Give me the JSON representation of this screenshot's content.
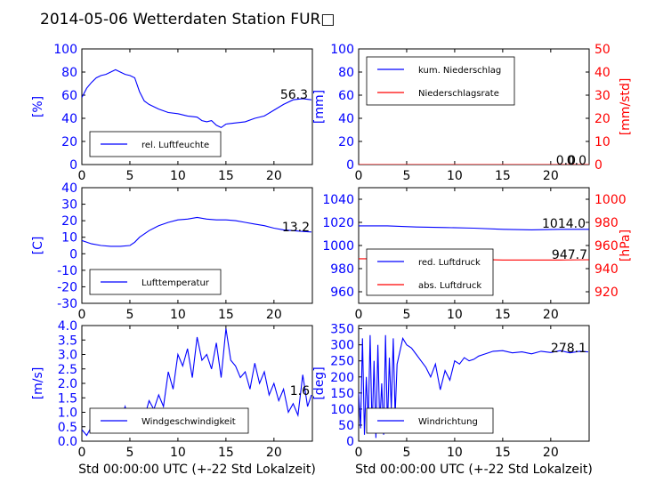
{
  "title": "2014-05-06 Wetterdaten Station FUR□",
  "chart_data": [
    {
      "type": "line",
      "xlim": [
        0,
        24
      ],
      "xticks": [
        0,
        5,
        10,
        15,
        20
      ],
      "ylim": [
        0,
        100
      ],
      "yticks": [
        0,
        20,
        40,
        60,
        80,
        100
      ],
      "ylabel": "[%]",
      "xlabel": "",
      "last_value": "56.3",
      "legend_position": "lower-left",
      "grid": false,
      "series": [
        {
          "name": "rel. Luftfeuchte",
          "color": "#0000ff",
          "axis": "left",
          "x": [
            0,
            0.5,
            1,
            1.5,
            2,
            2.5,
            3,
            3.5,
            4,
            4.5,
            5,
            5.5,
            6,
            6.5,
            7,
            7.5,
            8,
            9,
            10,
            11,
            12,
            12.5,
            13,
            13.5,
            14,
            14.5,
            15,
            16,
            17,
            18,
            19,
            20,
            21,
            22,
            23,
            23.9
          ],
          "y": [
            58,
            66,
            71,
            75,
            77,
            78,
            80,
            82,
            80,
            78,
            77,
            75,
            63,
            55,
            52,
            50,
            48,
            45,
            44,
            42,
            41,
            38,
            37,
            38,
            34,
            32,
            35,
            36,
            37,
            40,
            42,
            47,
            52,
            56,
            57,
            56
          ]
        }
      ]
    },
    {
      "type": "line",
      "xlim": [
        0,
        24
      ],
      "xticks": [
        0,
        5,
        10,
        15,
        20
      ],
      "ylim": [
        0,
        100
      ],
      "yticks": [
        0,
        20,
        40,
        60,
        80,
        100
      ],
      "ylabel": "[mm]",
      "y2lim": [
        0,
        50
      ],
      "y2ticks": [
        0,
        10,
        20,
        30,
        40,
        50
      ],
      "y2label": "[mm/std]",
      "xlabel": "",
      "last_value": "0.0",
      "last_value2": "0.0",
      "legend_position": "upper-left",
      "grid": false,
      "series": [
        {
          "name": "kum. Niederschlag",
          "color": "#0000ff",
          "axis": "left",
          "x": [
            0,
            24
          ],
          "y": [
            0,
            0
          ]
        },
        {
          "name": "Niederschlagsrate",
          "color": "#ff0000",
          "axis": "right",
          "x": [
            0,
            24
          ],
          "y": [
            0,
            0
          ]
        }
      ]
    },
    {
      "type": "line",
      "xlim": [
        0,
        24
      ],
      "xticks": [
        0,
        5,
        10,
        15,
        20
      ],
      "ylim": [
        -30,
        40
      ],
      "yticks": [
        -30,
        -20,
        -10,
        0,
        10,
        20,
        30,
        40
      ],
      "ylabel": "[C]",
      "xlabel": "",
      "last_value": "13.2",
      "legend_position": "lower-left",
      "grid": false,
      "series": [
        {
          "name": "Lufttemperatur",
          "color": "#0000ff",
          "axis": "left",
          "x": [
            0,
            1,
            2,
            3,
            4,
            5,
            5.5,
            6,
            7,
            8,
            9,
            10,
            11,
            12,
            13,
            14,
            15,
            16,
            17,
            18,
            19,
            20,
            21,
            22,
            23,
            23.9
          ],
          "y": [
            8,
            6,
            5,
            4.5,
            4.5,
            5,
            7,
            10,
            14,
            17,
            19,
            20.5,
            21,
            22,
            21,
            20.5,
            20.5,
            20,
            19,
            18,
            17,
            15.5,
            14.5,
            14,
            13.5,
            13.2
          ]
        }
      ]
    },
    {
      "type": "line",
      "xlim": [
        0,
        24
      ],
      "xticks": [
        0,
        5,
        10,
        15,
        20
      ],
      "ylim": [
        950,
        1050
      ],
      "yticks": [
        960,
        980,
        1000,
        1020,
        1040
      ],
      "y2lim": [
        910,
        1010
      ],
      "y2ticks": [
        920,
        940,
        960,
        980,
        1000
      ],
      "y2label": "[hPa]",
      "xlabel": "",
      "last_value": "1014.0",
      "last_value2": "947.7",
      "legend_position": "lower-left",
      "grid": false,
      "series": [
        {
          "name": "red. Luftdruck",
          "color": "#0000ff",
          "axis": "left",
          "x": [
            0,
            3,
            6,
            9,
            12,
            15,
            18,
            21,
            24
          ],
          "y": [
            1017,
            1017,
            1016,
            1015.5,
            1015,
            1014,
            1013.5,
            1014,
            1014
          ]
        },
        {
          "name": "abs. Luftdruck",
          "color": "#ff0000",
          "axis": "right",
          "x": [
            0,
            3,
            6,
            9,
            12,
            15,
            18,
            21,
            24
          ],
          "y": [
            948.5,
            948.5,
            948.2,
            948.5,
            948,
            947.5,
            947.5,
            947.5,
            947.7
          ]
        }
      ]
    },
    {
      "type": "line",
      "xlim": [
        0,
        24
      ],
      "xticks": [
        0,
        5,
        10,
        15,
        20
      ],
      "ylim": [
        0,
        4
      ],
      "yticks": [
        0.0,
        0.5,
        1.0,
        1.5,
        2.0,
        2.5,
        3.0,
        3.5,
        4.0
      ],
      "ylabel": "[m/s]",
      "xlabel": "Std 00:00:00 UTC (+-22 Std Lokalzeit)",
      "last_value": "1.6",
      "legend_position": "lower-left",
      "grid": false,
      "series": [
        {
          "name": "Windgeschwindigkeit",
          "color": "#0000ff",
          "axis": "left",
          "x": [
            0,
            0.5,
            1,
            1.5,
            2,
            2.5,
            3,
            3.5,
            4,
            4.5,
            5,
            5.5,
            6,
            6.5,
            7,
            7.5,
            8,
            8.5,
            9,
            9.5,
            10,
            10.5,
            11,
            11.5,
            12,
            12.5,
            13,
            13.5,
            14,
            14.5,
            15,
            15.5,
            16,
            16.5,
            17,
            17.5,
            18,
            18.5,
            19,
            19.5,
            20,
            20.5,
            21,
            21.5,
            22,
            22.5,
            23,
            23.5,
            23.9
          ],
          "y": [
            0.4,
            0.2,
            0.5,
            0.3,
            0.6,
            0.8,
            0.4,
            0.9,
            0.7,
            1.2,
            0.5,
            0.9,
            0.6,
            0.8,
            1.4,
            1.1,
            1.6,
            1.2,
            2.4,
            1.8,
            3.0,
            2.6,
            3.2,
            2.2,
            3.6,
            2.8,
            3.0,
            2.5,
            3.4,
            2.2,
            3.9,
            2.8,
            2.6,
            2.2,
            2.4,
            1.8,
            2.7,
            2.0,
            2.4,
            1.6,
            2.0,
            1.4,
            1.8,
            1.0,
            1.3,
            0.9,
            2.3,
            1.2,
            1.6
          ]
        }
      ]
    },
    {
      "type": "line",
      "xlim": [
        0,
        24
      ],
      "xticks": [
        0,
        5,
        10,
        15,
        20
      ],
      "ylim": [
        0,
        360
      ],
      "yticks": [
        0,
        50,
        100,
        150,
        200,
        250,
        300,
        350
      ],
      "ylabel": "[deg]",
      "xlabel": "Std 00:00:00 UTC (+-22 Std Lokalzeit)",
      "last_value": "278.1",
      "legend_position": "lower-left",
      "grid": false,
      "series": [
        {
          "name": "Windrichtung",
          "color": "#0000ff",
          "axis": "left",
          "x": [
            0,
            0.2,
            0.4,
            0.6,
            0.8,
            1,
            1.2,
            1.4,
            1.6,
            1.8,
            2,
            2.2,
            2.4,
            2.6,
            2.8,
            3,
            3.2,
            3.4,
            3.6,
            3.8,
            4,
            4.3,
            4.6,
            5,
            5.5,
            6,
            6.5,
            7,
            7.5,
            8,
            8.5,
            9,
            9.5,
            10,
            10.5,
            11,
            11.5,
            12,
            12.5,
            13,
            14,
            15,
            16,
            17,
            18,
            19,
            20,
            21,
            22,
            23,
            23.9
          ],
          "y": [
            150,
            40,
            320,
            20,
            200,
            60,
            330,
            30,
            250,
            10,
            300,
            50,
            180,
            20,
            330,
            40,
            260,
            100,
            320,
            80,
            240,
            280,
            320,
            300,
            290,
            270,
            250,
            230,
            200,
            240,
            160,
            220,
            190,
            250,
            240,
            260,
            250,
            255,
            265,
            270,
            280,
            282,
            275,
            278,
            272,
            280,
            276,
            282,
            275,
            280,
            278
          ]
        }
      ]
    }
  ]
}
